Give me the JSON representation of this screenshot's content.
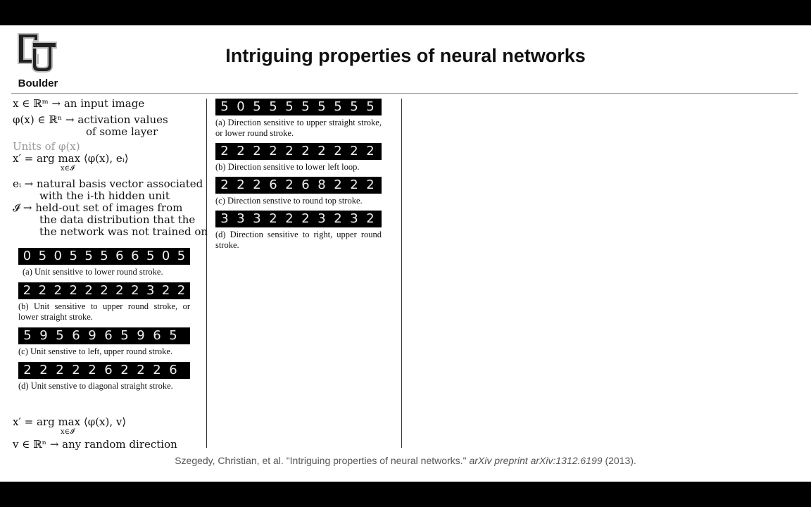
{
  "logo": {
    "text": "Boulder"
  },
  "title": "Intriguing properties of neural networks",
  "left": {
    "eq1": "x ∈ ℝᵐ → an input image",
    "eq2_a": "φ(x) ∈ ℝⁿ → activation values",
    "eq2_b": "of some layer",
    "units_label": "Units of φ(x)",
    "argmax1_main": "x′ = arg max ⟨φ(x), eᵢ⟩",
    "argmax1_sub": "x∈𝓘",
    "ei_a": "eᵢ → natural basis vector associated",
    "ei_b": "with the i-th hidden unit",
    "I_a": "𝓘 → held-out set of images from",
    "I_b": "the data distribution that the",
    "I_c": "the network was not trained on",
    "strips": [
      {
        "digits": [
          "0",
          "5",
          "0",
          "5",
          "5",
          "5",
          "6",
          "6",
          "5",
          "0",
          "5"
        ],
        "caption": "(a) Unit sensitive to lower round stroke."
      },
      {
        "digits": [
          "2",
          "2",
          "2",
          "2",
          "2",
          "2",
          "2",
          "2",
          "3",
          "2",
          "2"
        ],
        "caption": "(b) Unit sensitive to upper round stroke, or lower straight stroke."
      },
      {
        "digits": [
          "5",
          "9",
          "5",
          "6",
          "9",
          "6",
          "5",
          "9",
          "6",
          "5"
        ],
        "caption": "(c) Unit senstive to left, upper round stroke."
      },
      {
        "digits": [
          "2",
          "2",
          "2",
          "2",
          "2",
          "6",
          "2",
          "2",
          "2",
          "6"
        ],
        "caption": "(d) Unit senstive to diagonal straight stroke."
      }
    ],
    "argmax2_main": "x′ = arg max ⟨φ(x), v⟩",
    "argmax2_sub": "x∈𝓘",
    "v_line": "v ∈ ℝⁿ → any random direction"
  },
  "middle": {
    "strips": [
      {
        "digits": [
          "5",
          "0",
          "5",
          "5",
          "5",
          "5",
          "5",
          "5",
          "5",
          "5"
        ],
        "caption": "(a) Direction sensitive to upper straight stroke, or lower round stroke."
      },
      {
        "digits": [
          "2",
          "2",
          "2",
          "2",
          "2",
          "2",
          "2",
          "2",
          "2",
          "2"
        ],
        "caption": "(b) Direction sensitive to lower left loop."
      },
      {
        "digits": [
          "2",
          "2",
          "2",
          "6",
          "2",
          "6",
          "8",
          "2",
          "2",
          "2"
        ],
        "caption": "(c) Direction senstive to round top stroke."
      },
      {
        "digits": [
          "3",
          "3",
          "3",
          "2",
          "2",
          "2",
          "3",
          "2",
          "3",
          "2"
        ],
        "caption": "(d) Direction sensitive to right, upper round stroke."
      }
    ]
  },
  "citation": {
    "authors": "Szegedy, Christian, et al. \"Intriguing properties of neural networks.\"",
    "venue": "arXiv preprint arXiv:1312.6199",
    "year": "(2013)."
  }
}
